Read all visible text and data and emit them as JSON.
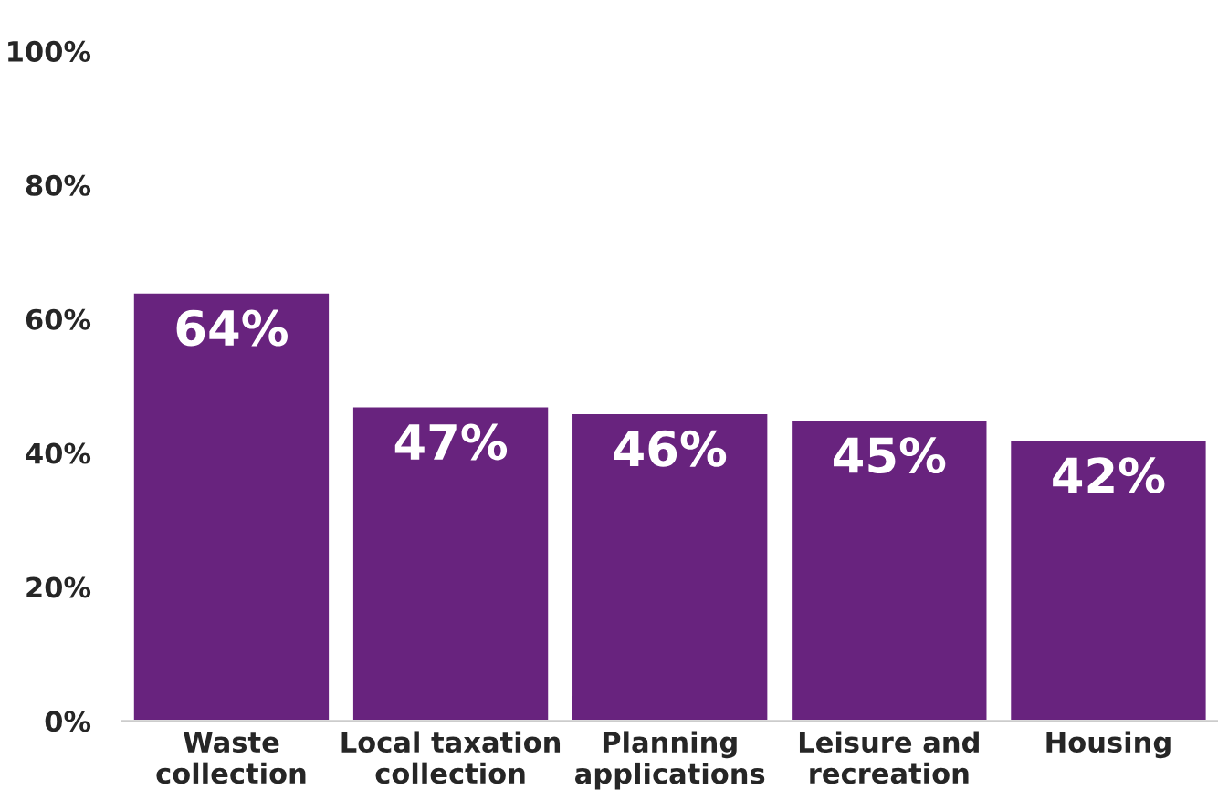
{
  "chart_data": {
    "type": "bar",
    "categories": [
      "Waste\ncollection",
      "Local taxation\ncollection",
      "Planning\napplications",
      "Leisure and\nrecreation",
      "Housing"
    ],
    "values": [
      64,
      47,
      46,
      45,
      42
    ],
    "color": "#68237e",
    "value_labels": [
      "64%",
      "47%",
      "46%",
      "45%",
      "42%"
    ],
    "ylim": [
      0,
      100
    ],
    "yticks": [
      {
        "value": 0,
        "label": "0%"
      },
      {
        "value": 20,
        "label": "20%"
      },
      {
        "value": 40,
        "label": "40%"
      },
      {
        "value": 60,
        "label": "60%"
      },
      {
        "value": 80,
        "label": "80%"
      },
      {
        "value": 100,
        "label": "100%"
      }
    ],
    "grid": false,
    "legend": false
  }
}
